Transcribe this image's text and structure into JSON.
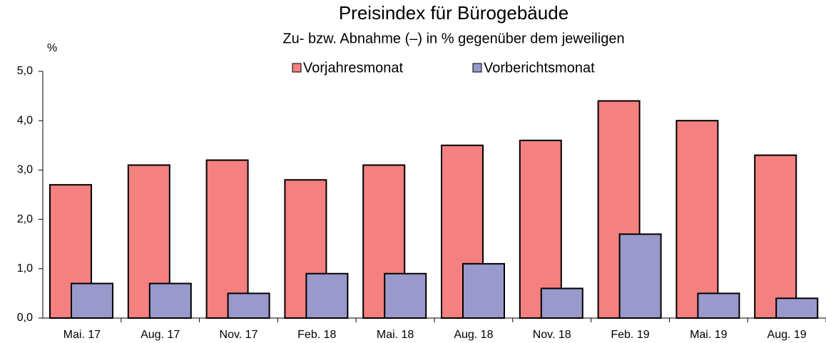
{
  "chart_data": {
    "type": "bar",
    "title": "Preisindex für Bürogebäude",
    "subtitle": "Zu- bzw. Abnahme (–) in % gegenüber dem jeweiligen",
    "y_label": "%",
    "categories": [
      "Mai. 17",
      "Aug. 17",
      "Nov. 17",
      "Feb. 18",
      "Mai. 18",
      "Aug. 18",
      "Nov. 18",
      "Feb. 19",
      "Mai. 19",
      "Aug. 19"
    ],
    "series": [
      {
        "name": "Vorjahresmonat",
        "color": "#f48080",
        "values": [
          2.7,
          3.1,
          3.2,
          2.8,
          3.1,
          3.5,
          3.6,
          4.4,
          4.0,
          3.3
        ]
      },
      {
        "name": "Vorberichtsmonat",
        "color": "#9999cc",
        "values": [
          0.7,
          0.7,
          0.5,
          0.9,
          0.9,
          1.1,
          0.6,
          1.7,
          0.5,
          0.4
        ]
      }
    ],
    "ylim": [
      0,
      5
    ],
    "yticks": [
      {
        "value": 0,
        "label": "0,0"
      },
      {
        "value": 1,
        "label": "1,0"
      },
      {
        "value": 2,
        "label": "2,0"
      },
      {
        "value": 3,
        "label": "3,0"
      },
      {
        "value": 4,
        "label": "4,0"
      },
      {
        "value": 5,
        "label": "5,0"
      }
    ],
    "grid": false,
    "legend": "top"
  }
}
